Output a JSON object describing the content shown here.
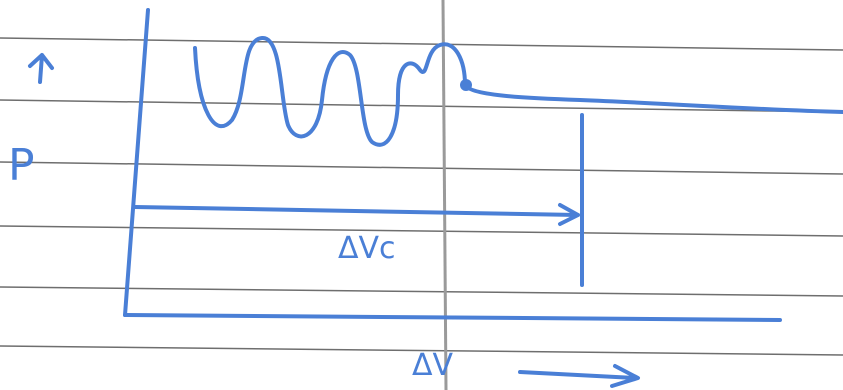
{
  "labels": {
    "y_axis": "P",
    "bracket": "ΔVc",
    "x_axis": "ΔV"
  }
}
